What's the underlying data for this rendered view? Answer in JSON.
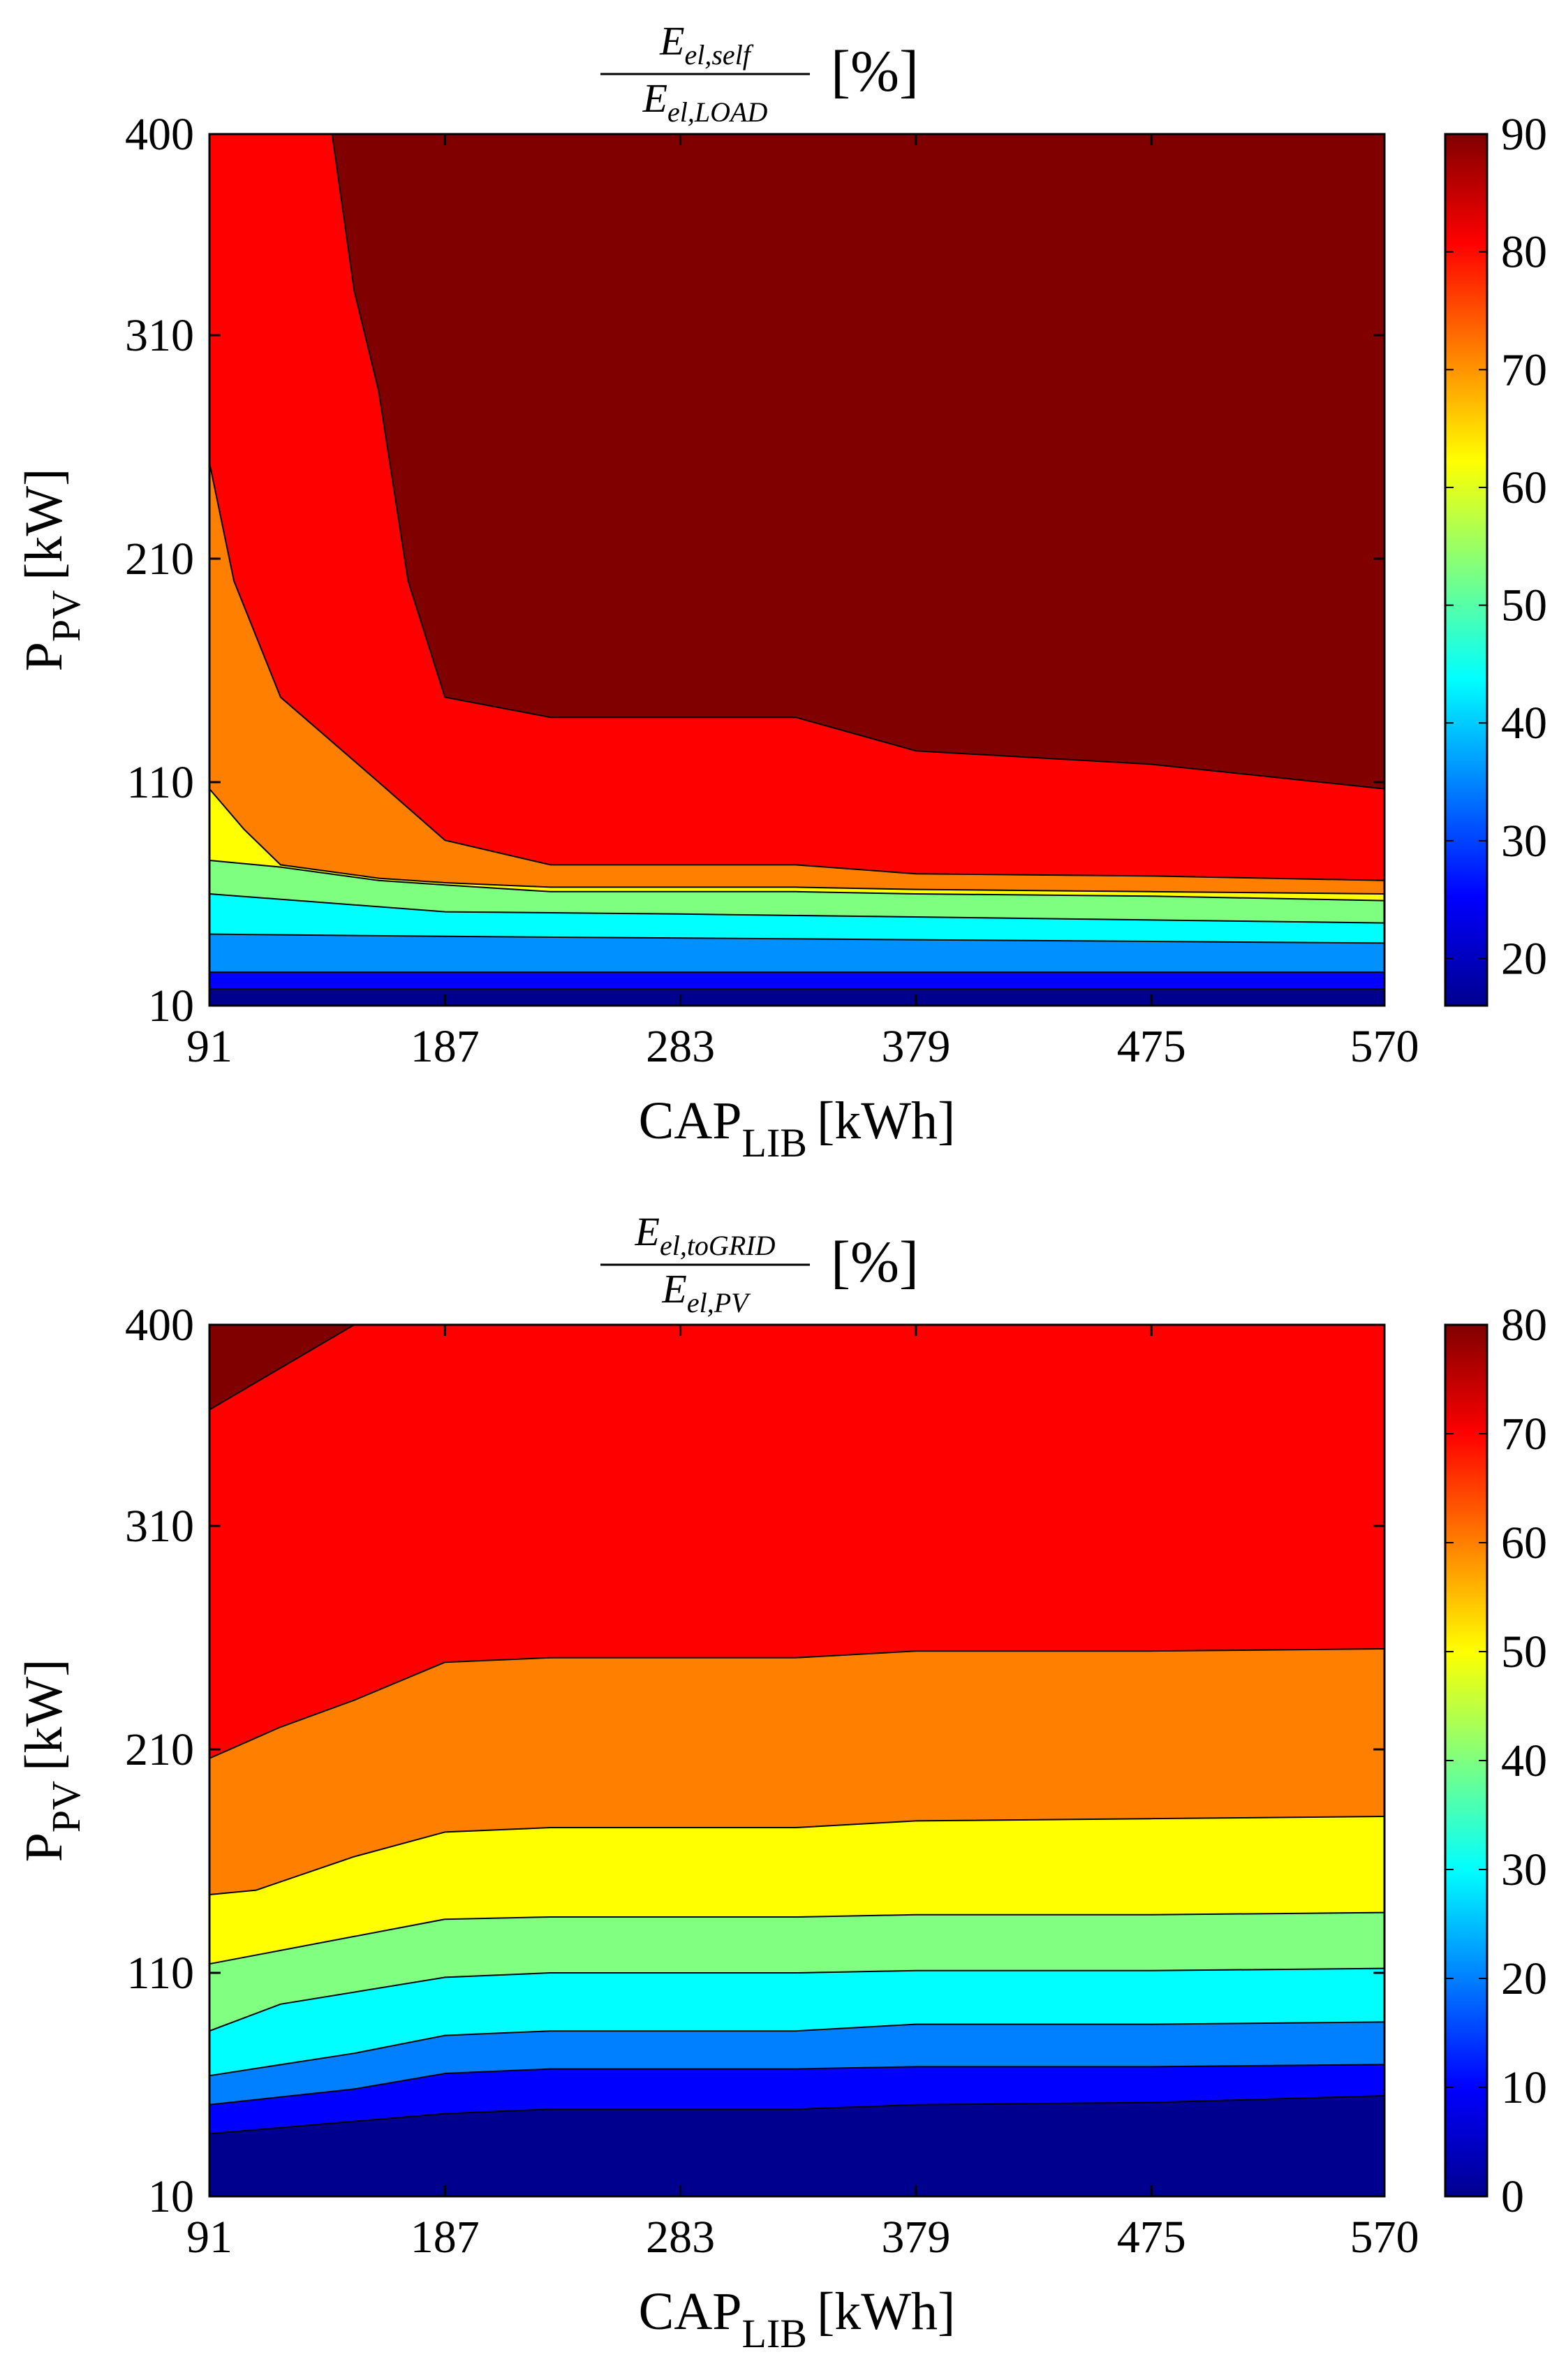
{
  "chart_data": [
    {
      "type": "contourf",
      "title": {
        "numerator": "E",
        "numerator_sub": "el,self",
        "denominator": "E",
        "denominator_sub": "el,LOAD",
        "unit": "[%]"
      },
      "xlabel": {
        "main": "CAP",
        "sub": "LIB",
        "unit": "[kWh]"
      },
      "ylabel": {
        "main": "P",
        "sub": "PV",
        "unit": "[kW]"
      },
      "xlim": [
        91,
        570
      ],
      "ylim": [
        10,
        400
      ],
      "xticks": [
        "91",
        "187",
        "283",
        "379",
        "475",
        "570"
      ],
      "yticks": [
        "10",
        "110",
        "210",
        "310",
        "400"
      ],
      "colorbar": {
        "range": [
          16,
          90
        ],
        "ticks": [
          "20",
          "30",
          "40",
          "50",
          "60",
          "70",
          "80",
          "90"
        ]
      },
      "levels": [
        {
          "label": "<20",
          "color": "#00008f",
          "upper_boundary": [
            [
              91,
              17.5
            ],
            [
              570,
              17.5
            ]
          ]
        },
        {
          "label": "20-25",
          "color": "#0000ff",
          "upper_boundary": [
            [
              91,
              25
            ],
            [
              570,
              25
            ]
          ]
        },
        {
          "label": "25-40",
          "color": "#0090ff",
          "upper_boundary": [
            [
              91,
              42
            ],
            [
              187,
              41
            ],
            [
              570,
              38
            ]
          ]
        },
        {
          "label": "40-55",
          "color": "#00ffff",
          "upper_boundary": [
            [
              91,
              60
            ],
            [
              187,
              52
            ],
            [
              283,
              51
            ],
            [
              570,
              47
            ]
          ]
        },
        {
          "label": "55-60",
          "color": "#7fff7f",
          "upper_boundary": [
            [
              91,
              75
            ],
            [
              120,
              72
            ],
            [
              160,
              66
            ],
            [
              187,
              64
            ],
            [
              230,
              61
            ],
            [
              283,
              61
            ],
            [
              330,
              61
            ],
            [
              379,
              60
            ],
            [
              475,
              59
            ],
            [
              570,
              57
            ]
          ]
        },
        {
          "label": "60-70",
          "color": "#ffff00",
          "upper_boundary": [
            [
              91,
              107
            ],
            [
              105,
              89
            ],
            [
              120,
              73
            ],
            [
              160,
              67
            ],
            [
              187,
              65
            ],
            [
              230,
              63
            ],
            [
              283,
              63
            ],
            [
              330,
              63
            ],
            [
              379,
              62
            ],
            [
              475,
              61
            ],
            [
              570,
              60
            ]
          ]
        },
        {
          "label": "70-80",
          "color": "#ff8000",
          "upper_boundary": [
            [
              91,
              253
            ],
            [
              101,
              200
            ],
            [
              120,
              148
            ],
            [
              160,
              110
            ],
            [
              187,
              84
            ],
            [
              230,
              73
            ],
            [
              283,
              73
            ],
            [
              330,
              73
            ],
            [
              379,
              69
            ],
            [
              475,
              68
            ],
            [
              570,
              66
            ]
          ]
        },
        {
          "label": "80-90",
          "color": "#ff0000",
          "upper_boundary": [
            [
              91,
              400
            ],
            [
              141,
              400
            ],
            [
              150,
              330
            ],
            [
              160,
              285
            ],
            [
              172,
              200
            ],
            [
              187,
              148
            ],
            [
              230,
              139
            ],
            [
              283,
              139
            ],
            [
              330,
              139
            ],
            [
              379,
              124
            ],
            [
              475,
              118
            ],
            [
              570,
              107
            ]
          ]
        },
        {
          "label": ">90",
          "color": "#800000",
          "upper_boundary": [
            [
              91,
              400
            ],
            [
              570,
              400
            ]
          ]
        }
      ]
    },
    {
      "type": "contourf",
      "title": {
        "numerator": "E",
        "numerator_sub": "el,toGRID",
        "denominator": "E",
        "denominator_sub": "el,PV",
        "unit": "[%]"
      },
      "xlabel": {
        "main": "CAP",
        "sub": "LIB",
        "unit": "[kWh]"
      },
      "ylabel": {
        "main": "P",
        "sub": "PV",
        "unit": "[kW]"
      },
      "xlim": [
        91,
        570
      ],
      "ylim": [
        10,
        400
      ],
      "xticks": [
        "91",
        "187",
        "283",
        "379",
        "475",
        "570"
      ],
      "yticks": [
        "10",
        "110",
        "210",
        "310",
        "400"
      ],
      "colorbar": {
        "range": [
          0,
          80
        ],
        "ticks": [
          "0",
          "10",
          "20",
          "30",
          "40",
          "50",
          "60",
          "70",
          "80"
        ]
      },
      "levels": [
        {
          "label": "0-10",
          "color": "#00008f",
          "upper_boundary": [
            [
              91,
              38
            ],
            [
              187,
              47
            ],
            [
              230,
              49
            ],
            [
              283,
              49
            ],
            [
              330,
              49
            ],
            [
              379,
              51
            ],
            [
              475,
              52
            ],
            [
              570,
              55
            ]
          ]
        },
        {
          "label": "10-20",
          "color": "#0000ff",
          "upper_boundary": [
            [
              91,
              51
            ],
            [
              150,
              58
            ],
            [
              187,
              65
            ],
            [
              230,
              67
            ],
            [
              283,
              67
            ],
            [
              330,
              67
            ],
            [
              379,
              68
            ],
            [
              475,
              68
            ],
            [
              570,
              69
            ]
          ]
        },
        {
          "label": "20-30",
          "color": "#0080ff",
          "upper_boundary": [
            [
              91,
              64
            ],
            [
              150,
              74
            ],
            [
              187,
              82
            ],
            [
              230,
              84
            ],
            [
              283,
              84
            ],
            [
              330,
              84
            ],
            [
              379,
              87
            ],
            [
              475,
              87
            ],
            [
              570,
              88
            ]
          ]
        },
        {
          "label": "30-40",
          "color": "#00ffff",
          "upper_boundary": [
            [
              91,
              84
            ],
            [
              120,
              96
            ],
            [
              187,
              108
            ],
            [
              230,
              110
            ],
            [
              283,
              110
            ],
            [
              330,
              110
            ],
            [
              379,
              111
            ],
            [
              475,
              111
            ],
            [
              570,
              112
            ]
          ]
        },
        {
          "label": "40-50",
          "color": "#80ff80",
          "upper_boundary": [
            [
              91,
              114
            ],
            [
              187,
              134
            ],
            [
              230,
              135
            ],
            [
              283,
              135
            ],
            [
              330,
              135
            ],
            [
              379,
              136
            ],
            [
              475,
              136
            ],
            [
              570,
              137
            ]
          ]
        },
        {
          "label": "50-60",
          "color": "#ffff00",
          "upper_boundary": [
            [
              91,
              145
            ],
            [
              110,
              147
            ],
            [
              150,
              162
            ],
            [
              187,
              173
            ],
            [
              230,
              175
            ],
            [
              283,
              175
            ],
            [
              330,
              175
            ],
            [
              379,
              178
            ],
            [
              475,
              179
            ],
            [
              570,
              180
            ]
          ]
        },
        {
          "label": "60-70",
          "color": "#ff8000",
          "upper_boundary": [
            [
              91,
              206
            ],
            [
              120,
              220
            ],
            [
              150,
              232
            ],
            [
              187,
              249
            ],
            [
              230,
              251
            ],
            [
              283,
              251
            ],
            [
              330,
              251
            ],
            [
              379,
              254
            ],
            [
              475,
              254
            ],
            [
              570,
              255
            ]
          ]
        },
        {
          "label": "70-80",
          "color": "#ff0000",
          "upper_boundary": [
            [
              91,
              362
            ],
            [
              150,
              400
            ],
            [
              570,
              400
            ]
          ]
        },
        {
          "label": ">80",
          "color": "#800000",
          "upper_boundary": [
            [
              91,
              400
            ],
            [
              570,
              400
            ]
          ]
        }
      ]
    }
  ]
}
